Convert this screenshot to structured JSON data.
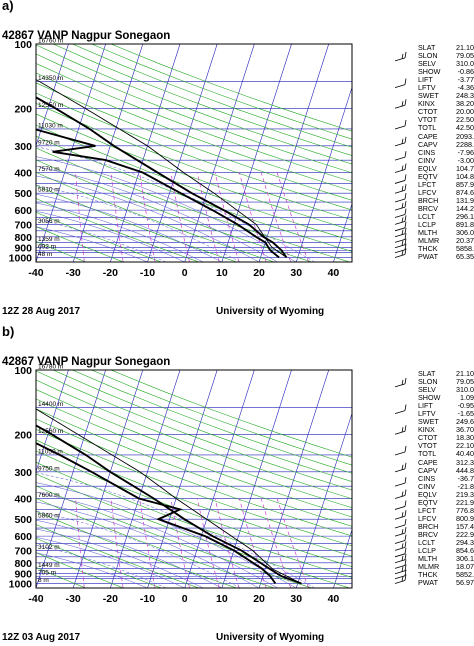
{
  "panels": [
    {
      "letter": "a)",
      "station": "42867 VANP Nagpur Sonegaon",
      "footer_left": "12Z 28 Aug 2017",
      "footer_right": "University of Wyoming",
      "indices": [
        [
          "SLAT",
          "21.10"
        ],
        [
          "SLON",
          "79.05"
        ],
        [
          "SELV",
          "310.0"
        ],
        [
          "SHOW",
          "-0.86"
        ],
        [
          "LIFT",
          "-3.77"
        ],
        [
          "LFTV",
          "-4.36"
        ],
        [
          "SWET",
          "248.3"
        ],
        [
          "KINX",
          "38.20"
        ],
        [
          "CTOT",
          "20.00"
        ],
        [
          "VTOT",
          "22.50"
        ],
        [
          "TOTL",
          "42.50"
        ],
        [
          "CAPE",
          "2093."
        ],
        [
          "CAPV",
          "2288."
        ],
        [
          "CINS",
          "-7.96"
        ],
        [
          "CINV",
          "-3.00"
        ],
        [
          "EQLV",
          "104.7"
        ],
        [
          "EQTV",
          "104.8"
        ],
        [
          "LFCT",
          "857.9"
        ],
        [
          "LFCV",
          "874.6"
        ],
        [
          "BRCH",
          "131.9"
        ],
        [
          "BRCV",
          "144.2"
        ],
        [
          "LCLT",
          "296.1"
        ],
        [
          "LCLP",
          "891.8"
        ],
        [
          "MLTH",
          "306.0"
        ],
        [
          "MLMR",
          "20.37"
        ],
        [
          "THCK",
          "5858."
        ],
        [
          "PWAT",
          "65.35"
        ]
      ],
      "height_labels": [
        {
          "p": 100,
          "text": "16760 m"
        },
        {
          "p": 150,
          "text": "14350 m"
        },
        {
          "p": 200,
          "text": "12550 m"
        },
        {
          "p": 250,
          "text": "11030 m"
        },
        {
          "p": 300,
          "text": "9720 m"
        },
        {
          "p": 400,
          "text": "7570 m"
        },
        {
          "p": 500,
          "text": "5810 m"
        },
        {
          "p": 700,
          "text": "3056 m"
        },
        {
          "p": 850,
          "text": "1359 m"
        },
        {
          "p": 925,
          "text": "692 m"
        },
        {
          "p": 1000,
          "text": "48 m"
        }
      ]
    },
    {
      "letter": "b)",
      "station": "42867 VANP Nagpur Sonegaon",
      "footer_left": "12Z 03 Aug 2017",
      "footer_right": "University of Wyoming",
      "indices": [
        [
          "SLAT",
          "21.10"
        ],
        [
          "SLON",
          "79.05"
        ],
        [
          "SELV",
          "310.0"
        ],
        [
          "SHOW",
          "1.09"
        ],
        [
          "LIFT",
          "-0.95"
        ],
        [
          "LFTV",
          "-1.65"
        ],
        [
          "SWET",
          "249.6"
        ],
        [
          "KINX",
          "36.70"
        ],
        [
          "CTOT",
          "18.30"
        ],
        [
          "VTOT",
          "22.10"
        ],
        [
          "TOTL",
          "40.40"
        ],
        [
          "CAPE",
          "312.3"
        ],
        [
          "CAPV",
          "444.8"
        ],
        [
          "CINS",
          "-36.7"
        ],
        [
          "CINV",
          "-21.8"
        ],
        [
          "EQLV",
          "219.3"
        ],
        [
          "EQTV",
          "221.9"
        ],
        [
          "LFCT",
          "776.8"
        ],
        [
          "LFCV",
          "800.9"
        ],
        [
          "BRCH",
          "157.4"
        ],
        [
          "BRCV",
          "222.9"
        ],
        [
          "LCLT",
          "294.3"
        ],
        [
          "LCLP",
          "854.6"
        ],
        [
          "MLTH",
          "306.1"
        ],
        [
          "MLMR",
          "18.07"
        ],
        [
          "THCK",
          "5852."
        ],
        [
          "PWAT",
          "56.97"
        ]
      ],
      "height_labels": [
        {
          "p": 100,
          "text": "16780 m"
        },
        {
          "p": 150,
          "text": "14400 m"
        },
        {
          "p": 200,
          "text": "12560 m"
        },
        {
          "p": 250,
          "text": "11050 m"
        },
        {
          "p": 300,
          "text": "9750 m"
        },
        {
          "p": 400,
          "text": "7600 m"
        },
        {
          "p": 500,
          "text": "5860 m"
        },
        {
          "p": 700,
          "text": "3102 m"
        },
        {
          "p": 850,
          "text": "1449 m"
        },
        {
          "p": 925,
          "text": "705 m"
        },
        {
          "p": 1000,
          "text": "8 m"
        }
      ]
    }
  ],
  "chart_data": [
    {
      "type": "line",
      "title": "42867 VANP Nagpur Sonegaon 12Z 28 Aug 2017",
      "xlabel": "",
      "ylabel": "",
      "x_ticks": [
        -40,
        -30,
        -20,
        -10,
        0,
        10,
        20,
        30,
        40
      ],
      "y_ticks": [
        100,
        150,
        200,
        250,
        300,
        400,
        500,
        600,
        700,
        850,
        925,
        1000
      ],
      "y_tick_labels": [
        100,
        200,
        300,
        400,
        500,
        600,
        700,
        800,
        900,
        1000
      ],
      "xlim": [
        -40,
        45
      ],
      "ylim": [
        1050,
        100
      ],
      "y_scale": "log",
      "skew": true,
      "series": [
        {
          "kind": "temperature",
          "points": [
            [
              1000,
              27
            ],
            [
              925,
              25
            ],
            [
              850,
              22
            ],
            [
              800,
              19
            ],
            [
              700,
              14
            ],
            [
              600,
              6
            ],
            [
              500,
              -4
            ],
            [
              400,
              -15
            ],
            [
              300,
              -29
            ],
            [
              250,
              -37
            ],
            [
              200,
              -48
            ],
            [
              150,
              -63
            ],
            [
              100,
              -78
            ]
          ]
        },
        {
          "kind": "dewpoint",
          "points": [
            [
              1000,
              25
            ],
            [
              925,
              22
            ],
            [
              850,
              20
            ],
            [
              800,
              17
            ],
            [
              700,
              11
            ],
            [
              600,
              3
            ],
            [
              500,
              -7
            ],
            [
              400,
              -19
            ],
            [
              350,
              -30
            ],
            [
              320,
              -45
            ],
            [
              300,
              -34
            ],
            [
              250,
              -52
            ],
            [
              200,
              -58
            ],
            [
              150,
              -70
            ],
            [
              100,
              -82
            ]
          ]
        },
        {
          "kind": "parcel",
          "points": [
            [
              1000,
              27
            ],
            [
              890,
              22
            ],
            [
              700,
              16
            ],
            [
              500,
              2
            ],
            [
              400,
              -8
            ],
            [
              300,
              -20
            ],
            [
              200,
              -40
            ],
            [
              100,
              -75
            ]
          ]
        }
      ]
    },
    {
      "type": "line",
      "title": "42867 VANP Nagpur Sonegaon 12Z 03 Aug 2017",
      "xlabel": "",
      "ylabel": "",
      "x_ticks": [
        -40,
        -30,
        -20,
        -10,
        0,
        10,
        20,
        30,
        40
      ],
      "y_ticks": [
        100,
        150,
        200,
        250,
        300,
        400,
        500,
        600,
        700,
        850,
        925,
        1000
      ],
      "y_tick_labels": [
        100,
        200,
        300,
        400,
        500,
        600,
        700,
        800,
        900,
        1000
      ],
      "xlim": [
        -40,
        45
      ],
      "ylim": [
        1050,
        100
      ],
      "y_scale": "log",
      "skew": true,
      "series": [
        {
          "kind": "temperature",
          "points": [
            [
              1000,
              31
            ],
            [
              925,
              25
            ],
            [
              850,
              21
            ],
            [
              700,
              12
            ],
            [
              600,
              3
            ],
            [
              500,
              -6
            ],
            [
              400,
              -16
            ],
            [
              300,
              -30
            ],
            [
              250,
              -38
            ],
            [
              200,
              -49
            ],
            [
              150,
              -64
            ],
            [
              100,
              -79
            ]
          ]
        },
        {
          "kind": "dewpoint",
          "points": [
            [
              1000,
              24
            ],
            [
              925,
              22
            ],
            [
              850,
              19
            ],
            [
              700,
              10
            ],
            [
              600,
              1
            ],
            [
              500,
              -13
            ],
            [
              450,
              -8
            ],
            [
              400,
              -20
            ],
            [
              300,
              -35
            ],
            [
              250,
              -45
            ],
            [
              200,
              -58
            ],
            [
              150,
              -72
            ],
            [
              100,
              -85
            ]
          ]
        },
        {
          "kind": "parcel",
          "points": [
            [
              1000,
              31
            ],
            [
              855,
              22
            ],
            [
              700,
              15
            ],
            [
              500,
              0
            ],
            [
              400,
              -10
            ],
            [
              300,
              -22
            ],
            [
              200,
              -42
            ],
            [
              100,
              -76
            ]
          ]
        }
      ]
    }
  ],
  "colors": {
    "isotherm": "#2222bb",
    "dry_adiabat": "#22aa22",
    "moist_adiabat": "#5555cc",
    "mixing_ratio": "#cc22cc",
    "profile": "#000000"
  }
}
